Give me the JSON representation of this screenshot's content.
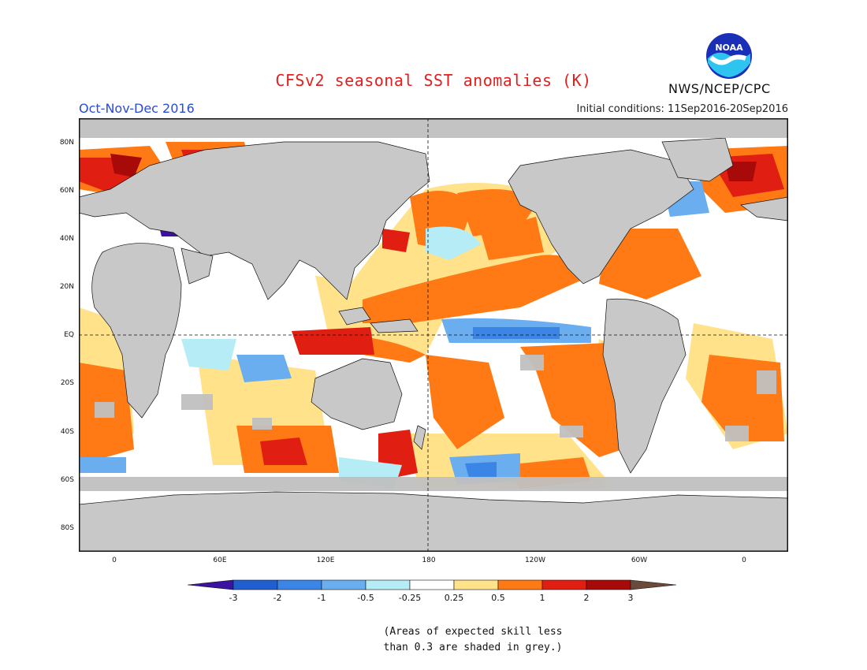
{
  "header": {
    "title": "CFSv2 seasonal SST anomalies (K)",
    "period": "Oct-Nov-Dec 2016",
    "initial_conditions": "Initial conditions: 11Sep2016-20Sep2016",
    "agency": "NWS/NCEP/CPC",
    "logo_text": "NOAA"
  },
  "map": {
    "projection": "equirectangular",
    "lat_range": [
      -90,
      90
    ],
    "lon_range_center": 180,
    "lat_labels": [
      "80N",
      "60N",
      "40N",
      "20N",
      "EQ",
      "20S",
      "40S",
      "60S",
      "80S"
    ],
    "lon_labels": [
      "0",
      "60E",
      "120E",
      "180",
      "120W",
      "60W",
      "0"
    ],
    "reference_lines": [
      "equator",
      "dateline"
    ],
    "land_color": "#c8c8c8",
    "grey_mask_meaning": "skill less than 0.3"
  },
  "colorbar": {
    "tick_labels": [
      "-3",
      "-2",
      "-1",
      "-0.5",
      "-0.25",
      "0.25",
      "0.5",
      "1",
      "2",
      "3"
    ],
    "colors": [
      "#3a14a0",
      "#1f5fcf",
      "#3b85e6",
      "#6aaef0",
      "#b5ecf5",
      "#ffffff",
      "#ffe28a",
      "#ff7a15",
      "#e01e12",
      "#a80a0a",
      "#6b4a3a"
    ]
  },
  "footnote": {
    "text": "(Areas of expected skill less\nthan 0.3 are shaded in grey.)"
  }
}
